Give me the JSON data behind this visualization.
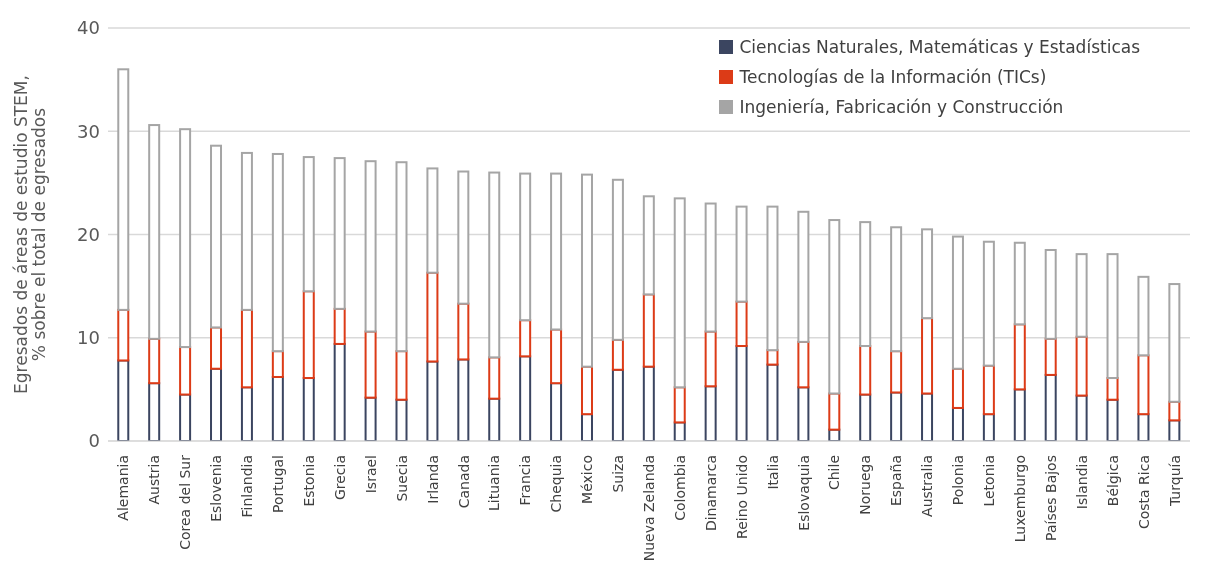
{
  "chart_data": {
    "type": "bar",
    "stacked": true,
    "ylabel": "Egresados de áreas de estudio STEM, % sobre el total de egresados",
    "categories": [
      "Alemania",
      "Austria",
      "Corea del Sur",
      "Eslovenia",
      "Finlandia",
      "Portugal",
      "Estonia",
      "Grecia",
      "Israel",
      "Suecia",
      "Irlanda",
      "Canada",
      "Lituania",
      "Francia",
      "Chequia",
      "México",
      "Suiza",
      "Nueva Zelanda",
      "Colombia",
      "Dinamarca",
      "Reino Unido",
      "Italia",
      "Eslovaquia",
      "Chile",
      "Noruega",
      "España",
      "Australia",
      "Polonia",
      "Letonia",
      "Luxemburgo",
      "Países Bajos",
      "Islandia",
      "Bélgica",
      "Costa Rica",
      "Turquía"
    ],
    "series": [
      {
        "name": "Ciencias Naturales, Matemáticas y Estadísticas",
        "color": "#3b4560",
        "values": [
          7.8,
          5.6,
          4.5,
          7.0,
          5.2,
          6.2,
          6.1,
          9.4,
          4.2,
          4.0,
          7.7,
          7.9,
          4.1,
          8.2,
          5.6,
          2.6,
          6.9,
          7.2,
          1.8,
          5.3,
          9.2,
          7.4,
          5.2,
          1.1,
          4.5,
          4.7,
          4.6,
          3.2,
          2.6,
          5.0,
          6.4,
          4.4,
          4.0,
          2.6,
          2.0
        ]
      },
      {
        "name": "Tecnologías de la Información (TICs)",
        "color": "#dc3b17",
        "values": [
          4.9,
          4.3,
          4.6,
          4.0,
          7.5,
          2.5,
          8.4,
          3.4,
          6.4,
          4.7,
          8.6,
          5.4,
          4.0,
          3.5,
          5.2,
          4.6,
          2.9,
          7.0,
          3.4,
          5.3,
          4.3,
          1.4,
          4.4,
          3.5,
          4.7,
          4.0,
          7.3,
          3.8,
          4.7,
          6.3,
          3.5,
          5.7,
          2.1,
          5.7,
          1.8
        ]
      },
      {
        "name": "Ingeniería, Fabricación y Construcción",
        "color": "#a5a5a5",
        "values": [
          23.3,
          20.7,
          21.1,
          17.6,
          15.2,
          19.1,
          13.0,
          14.6,
          16.5,
          18.3,
          10.1,
          12.8,
          17.9,
          14.2,
          15.1,
          18.6,
          15.5,
          9.5,
          18.3,
          12.4,
          9.2,
          13.9,
          12.6,
          16.8,
          12.0,
          12.0,
          8.6,
          12.8,
          12.0,
          7.9,
          8.6,
          8.0,
          12.0,
          7.6,
          11.4
        ]
      }
    ],
    "ylim": [
      0,
      40
    ],
    "yticks": [
      0,
      10,
      20,
      30,
      40
    ],
    "grid": "y",
    "legend": "top right"
  }
}
